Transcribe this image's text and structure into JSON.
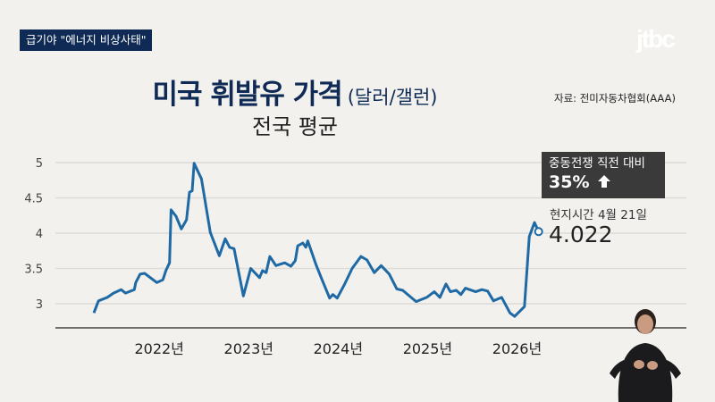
{
  "header": {
    "badge": "급기야 \"에너지 비상사태\"",
    "logo": "jtbc"
  },
  "title": {
    "main": "미국 휘발유 가격",
    "unit": "(달러/갤런)",
    "subtitle": "전국 평균",
    "source": "자료: 전미자동차협회(AAA)"
  },
  "callout": {
    "label": "중동전쟁 직전 대비",
    "value": "35%",
    "icon": "arrow-up-icon"
  },
  "latest": {
    "label": "현지시간 4월 21일",
    "value": "4.022"
  },
  "colors": {
    "line": "#1f6aa5",
    "title": "#0f2a55",
    "callout_bg": "#3a3a3a",
    "badge_bg": "#0f2a55"
  },
  "chart_data": {
    "type": "line",
    "title": "미국 휘발유 가격",
    "subtitle": "전국 평균",
    "ylabel": "(달러/갤런)",
    "ylim": [
      2.66,
      5.0
    ],
    "xlim": [
      "2020-11-25",
      "2027-12-15"
    ],
    "yticks": [
      3,
      3.5,
      4,
      4.5,
      5
    ],
    "ytick_labels": [
      "3",
      "3.5",
      "4",
      "4.5",
      "5"
    ],
    "xticks": [
      "2022-01-01",
      "2023-01-01",
      "2024-01-01",
      "2025-01-01",
      "2026-01-01"
    ],
    "xtick_labels": [
      "2022년",
      "2023년",
      "2024년",
      "2025년",
      "2026년"
    ],
    "grid": true,
    "x": [
      "2021-05-01",
      "2021-05-20",
      "2021-06-25",
      "2021-07-20",
      "2021-08-20",
      "2021-09-07",
      "2021-10-13",
      "2021-10-19",
      "2021-11-06",
      "2021-11-24",
      "2022-01-13",
      "2022-02-07",
      "2022-02-19",
      "2022-03-06",
      "2022-03-12",
      "2022-04-01",
      "2022-04-23",
      "2022-05-14",
      "2022-05-26",
      "2022-06-06",
      "2022-06-14",
      "2022-07-14",
      "2022-08-19",
      "2022-09-25",
      "2022-10-19",
      "2022-11-06",
      "2022-11-24",
      "2023-01-01",
      "2023-01-31",
      "2023-03-08",
      "2023-03-20",
      "2023-04-04",
      "2023-04-19",
      "2023-05-14",
      "2023-06-19",
      "2023-07-14",
      "2023-08-01",
      "2023-08-11",
      "2023-09-01",
      "2023-09-13",
      "2023-09-21",
      "2023-10-25",
      "2023-11-18",
      "2023-12-19",
      "2024-01-01",
      "2024-01-19",
      "2024-02-19",
      "2024-03-20",
      "2024-04-25",
      "2024-05-20",
      "2024-06-19",
      "2024-07-17",
      "2024-08-19",
      "2024-09-19",
      "2024-10-13",
      "2024-12-07",
      "2025-01-19",
      "2025-02-19",
      "2025-03-14",
      "2025-04-08",
      "2025-04-26",
      "2025-05-20",
      "2025-06-08",
      "2025-06-26",
      "2025-08-07",
      "2025-09-01",
      "2025-09-25",
      "2025-10-19",
      "2025-11-21",
      "2025-12-25",
      "2026-01-13",
      "2026-02-22",
      "2026-03-14",
      "2026-04-04",
      "2026-04-21"
    ],
    "y": [
      2.87,
      3.04,
      3.09,
      3.15,
      3.2,
      3.15,
      3.2,
      3.3,
      3.42,
      3.43,
      3.3,
      3.34,
      3.47,
      3.58,
      4.33,
      4.24,
      4.06,
      4.19,
      4.58,
      4.6,
      4.99,
      4.77,
      4.01,
      3.68,
      3.92,
      3.8,
      3.78,
      3.11,
      3.5,
      3.37,
      3.47,
      3.44,
      3.67,
      3.54,
      3.58,
      3.53,
      3.61,
      3.82,
      3.86,
      3.8,
      3.89,
      3.55,
      3.34,
      3.08,
      3.13,
      3.08,
      3.28,
      3.5,
      3.67,
      3.62,
      3.44,
      3.54,
      3.42,
      3.21,
      3.19,
      3.03,
      3.09,
      3.17,
      3.09,
      3.28,
      3.17,
      3.19,
      3.13,
      3.22,
      3.17,
      3.2,
      3.18,
      3.04,
      3.09,
      2.87,
      2.82,
      2.96,
      3.95,
      4.15,
      4.022
    ],
    "annotations": [
      "중동전쟁 직전 대비 35%",
      "현지시간 4월 21일 4.022"
    ]
  }
}
